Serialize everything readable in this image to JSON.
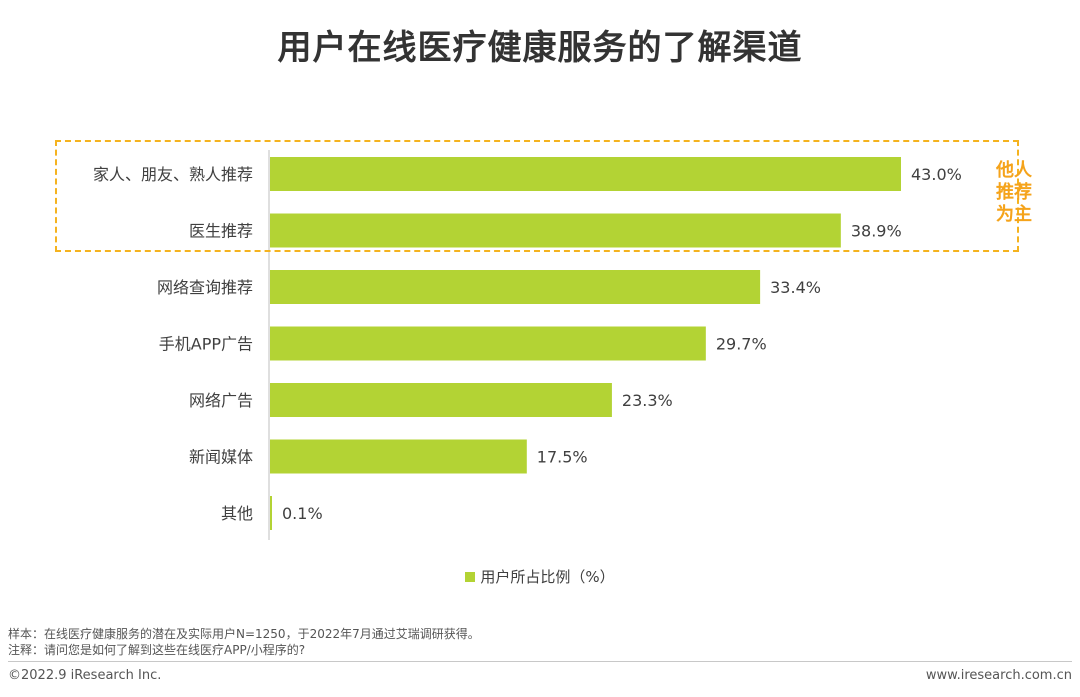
{
  "title": "用户在线医疗健康服务的了解渠道",
  "chart_data": {
    "type": "bar",
    "orientation": "horizontal",
    "title": "用户在线医疗健康服务的了解渠道",
    "categories": [
      "家人、朋友、熟人推荐",
      "医生推荐",
      "网络查询推荐",
      "手机APP广告",
      "网络广告",
      "新闻媒体",
      "其他"
    ],
    "values": [
      43.0,
      38.9,
      33.4,
      29.7,
      23.3,
      17.5,
      0.1
    ],
    "value_labels": [
      "43.0%",
      "38.9%",
      "33.4%",
      "29.7%",
      "23.3%",
      "17.5%",
      "0.1%"
    ],
    "series_name": "用户所占比例（%）",
    "xlim": [
      0,
      43
    ],
    "grid": false,
    "legend_position": "bottom-center",
    "bar_color": "#b3d334",
    "highlight": {
      "categories": [
        "家人、朋友、熟人推荐",
        "医生推荐"
      ],
      "annotation": [
        "他人",
        "推荐",
        "为主"
      ],
      "color": "#f5b31f"
    }
  },
  "notes": {
    "sample": "样本：在线医疗健康服务的潜在及实际用户N=1250，于2022年7月通过艾瑞调研获得。",
    "remark": "注释：请问您是如何了解到这些在线医疗APP/小程序的?"
  },
  "footer": {
    "copyright": "©2022.9 iResearch Inc.",
    "website": "www.iresearch.com.cn"
  }
}
